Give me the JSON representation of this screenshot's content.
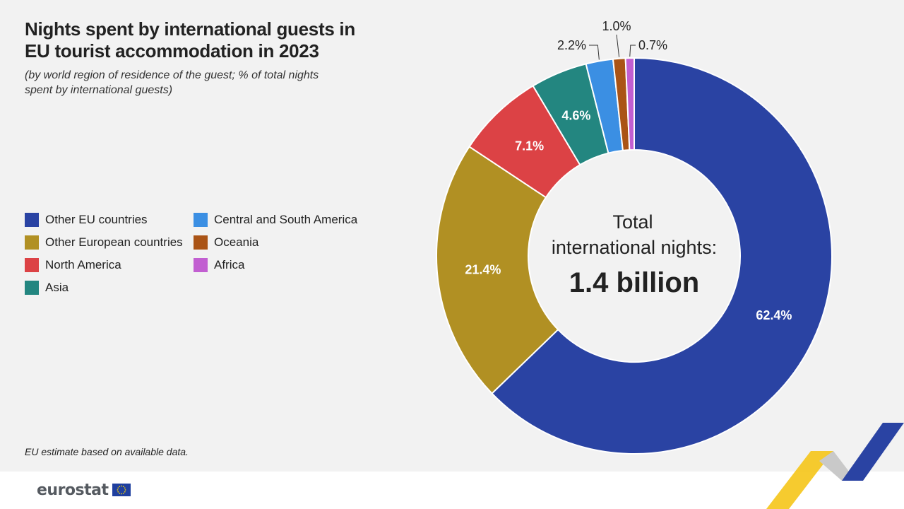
{
  "title_lines": [
    "Nights spent by international guests in",
    "EU tourist accommodation in 2023"
  ],
  "subtitle_lines": [
    "(by world region of residence of the guest; % of total nights",
    "spent by international guests)"
  ],
  "footnote": "EU estimate based on available data.",
  "logo_text": "eurostat",
  "center": {
    "label_line1": "Total",
    "label_line2": "international nights:",
    "value": "1.4 billion"
  },
  "colors": {
    "background": "#f2f2f2",
    "label_light": "#ffffff",
    "label_dark": "#222222"
  },
  "chart_data": {
    "type": "pie",
    "variant": "donut",
    "title": "Nights spent by international guests in EU tourist accommodation in 2023",
    "subtitle": "(by world region of residence of the guest; % of total nights spent by international guests)",
    "unit": "%",
    "legend_position": "left",
    "slices": [
      {
        "name": "Other EU countries",
        "value": 62.4,
        "label": "62.4%",
        "color": "#2a43a3"
      },
      {
        "name": "Other European countries",
        "value": 21.4,
        "label": "21.4%",
        "color": "#b19023"
      },
      {
        "name": "North America",
        "value": 7.1,
        "label": "7.1%",
        "color": "#dc4245"
      },
      {
        "name": "Asia",
        "value": 4.6,
        "label": "4.6%",
        "color": "#238680"
      },
      {
        "name": "Central and South America",
        "value": 2.2,
        "label": "2.2%",
        "color": "#3b8fe3"
      },
      {
        "name": "Oceania",
        "value": 1.0,
        "label": "1.0%",
        "color": "#aa5416"
      },
      {
        "name": "Africa",
        "value": 0.7,
        "label": "0.7%",
        "color": "#c25fd1"
      }
    ]
  }
}
